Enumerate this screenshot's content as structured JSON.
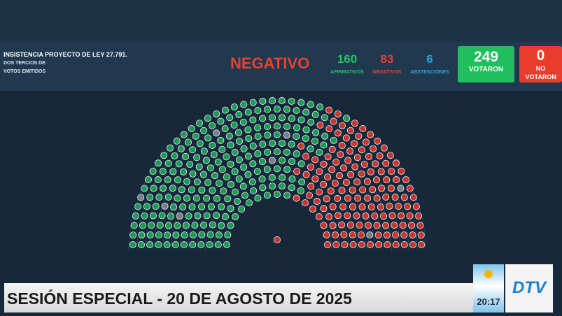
{
  "header": {
    "title": "INSISTENCIA PROYECTO DE LEY 27.791.",
    "subtitle_lines": [
      "DOS TERCIOS DE",
      "VOTOS EMITIDOS"
    ],
    "result": "NEGATIVO"
  },
  "tally": [
    {
      "value": "160",
      "label": "AFIRMATIVOS"
    },
    {
      "value": "83",
      "label": "NEGATIVOS"
    },
    {
      "value": "6",
      "label": "ABSTENCIONES"
    }
  ],
  "totals": [
    {
      "value": "249",
      "label": "VOTARON"
    },
    {
      "value": "0",
      "label": "NO VOTARON"
    }
  ],
  "banner": {
    "text": "SESIÓN ESPECIAL - 20 DE AGOSTO DE 2025"
  },
  "logo": {
    "time": "20:17",
    "brand": "DTV"
  }
}
